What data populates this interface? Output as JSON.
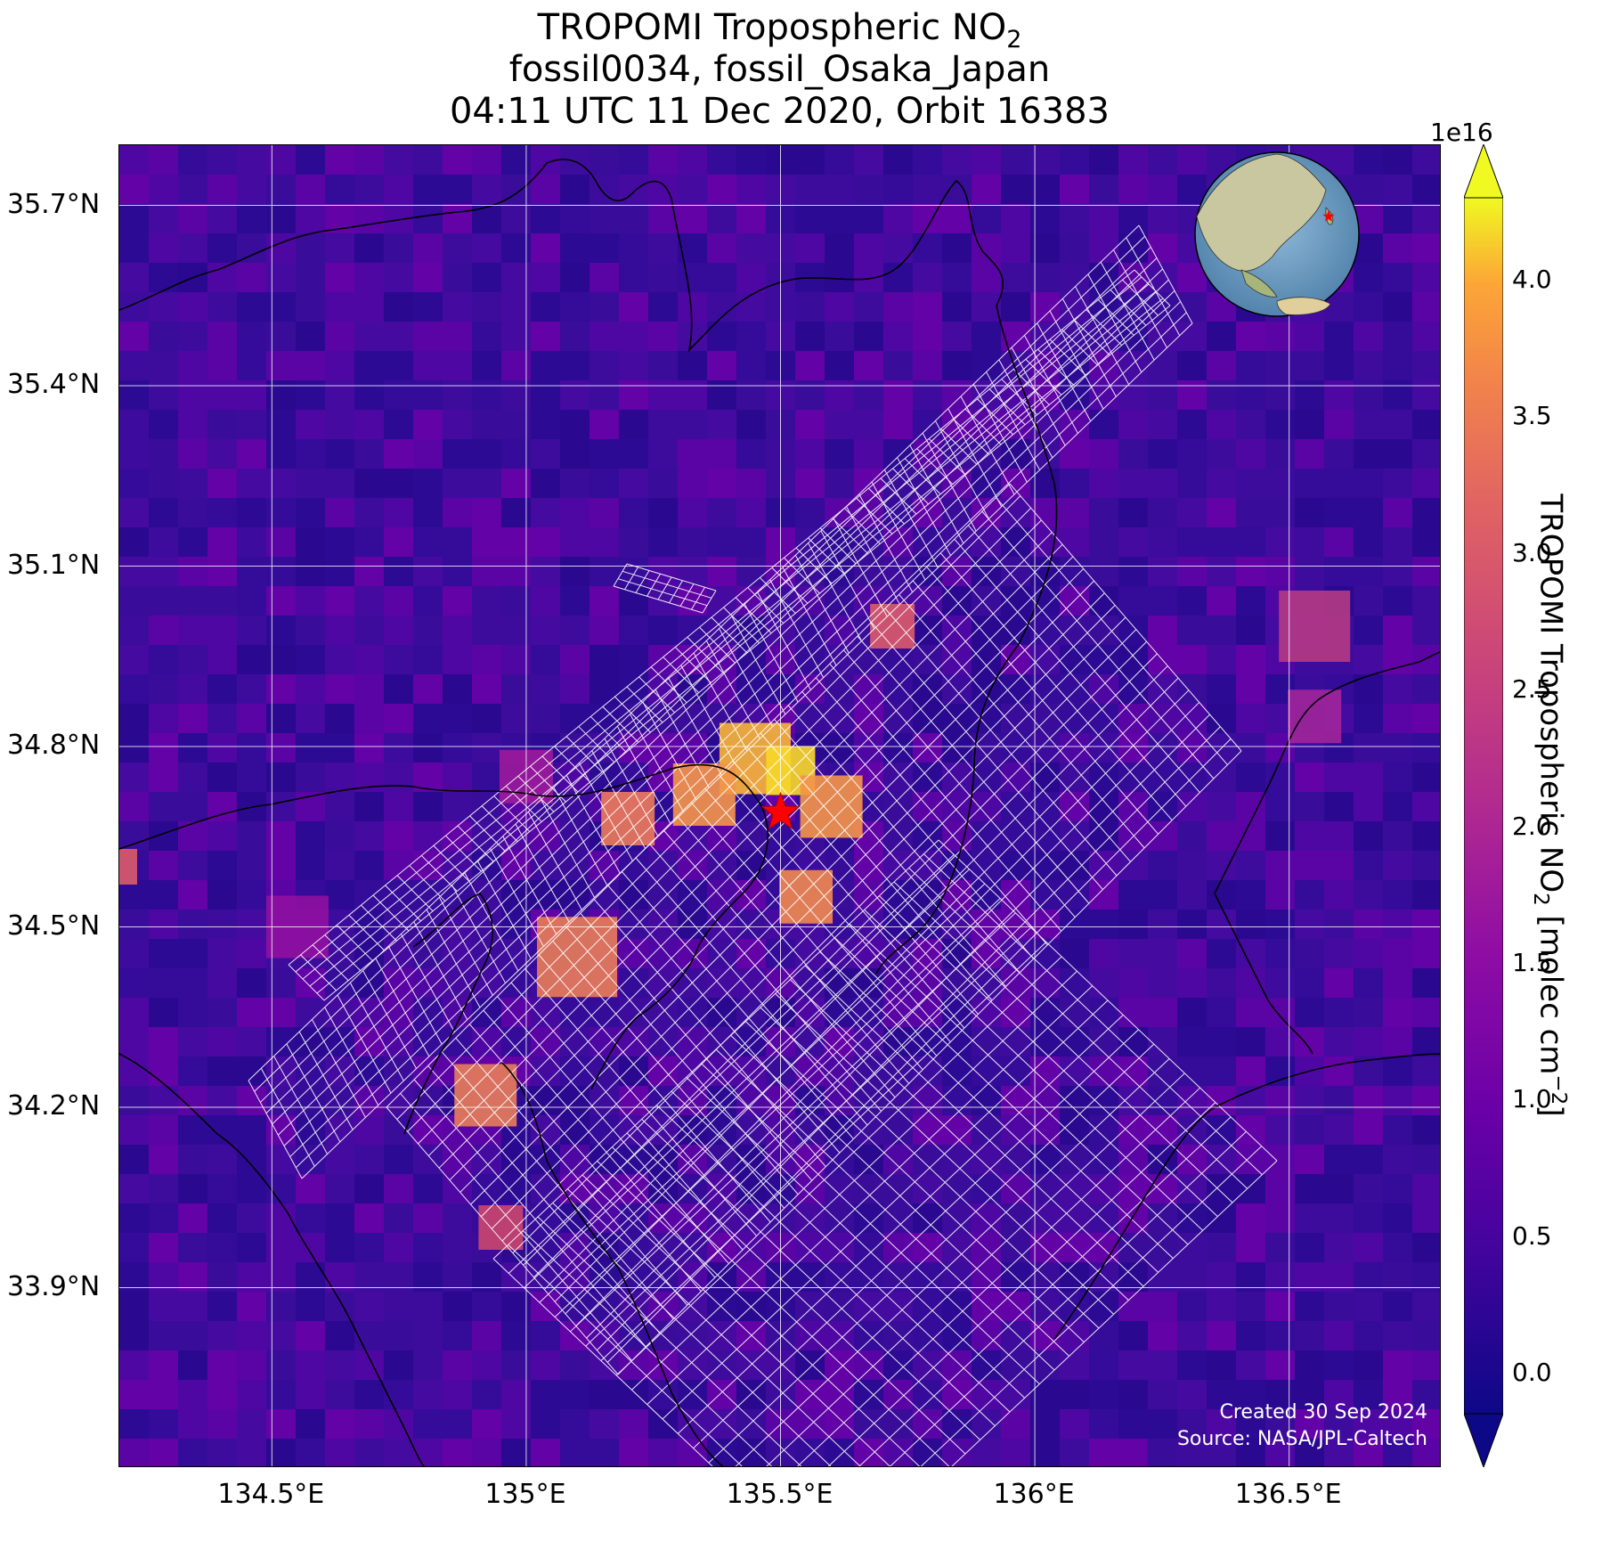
{
  "title": {
    "line1_prefix": "TROPOMI Tropospheric NO",
    "line1_sub": "2",
    "line2": "fossil0034, fossil_Osaka_Japan",
    "line3": "04:11 UTC 11 Dec 2020, Orbit 16383"
  },
  "axes": {
    "lat_labels": [
      "35.7°N",
      "35.4°N",
      "35.1°N",
      "34.8°N",
      "34.5°N",
      "34.2°N",
      "33.9°N"
    ],
    "lat_values": [
      35.7,
      35.4,
      35.1,
      34.8,
      34.5,
      34.2,
      33.9
    ],
    "lon_labels": [
      "134.5°E",
      "135°E",
      "135.5°E",
      "136°E",
      "136.5°E"
    ],
    "lon_values": [
      134.5,
      135.0,
      135.5,
      136.0,
      136.5
    ],
    "lat_range": [
      33.6,
      35.8
    ],
    "lon_range": [
      134.2,
      136.8
    ],
    "grid": true
  },
  "target": {
    "marker": "red-star",
    "lat": 34.69,
    "lon": 135.5,
    "color": "#ff0000"
  },
  "colorbar": {
    "exponent": "1e16",
    "ticks": [
      "0.0",
      "0.5",
      "1.0",
      "1.5",
      "2.0",
      "2.5",
      "3.0",
      "3.5",
      "4.0"
    ],
    "tick_values": [
      0.0,
      0.5,
      1.0,
      1.5,
      2.0,
      2.5,
      3.0,
      3.5,
      4.0
    ],
    "range": [
      -0.15,
      4.3
    ],
    "colormap": "plasma",
    "extend": "both",
    "label_prefix": "TROPOMI Tropospheric NO",
    "label_sub": "2",
    "label_units": " [molec cm",
    "label_sup": "−2",
    "label_close": "]"
  },
  "credit": {
    "line1": "Created 30 Sep 2024",
    "line2": "Source: NASA/JPL-Caltech"
  },
  "inset": {
    "type": "globe",
    "marker": "red-star"
  },
  "colors": {
    "background_plasma_low": "#3a0c9a",
    "grid": "#ffffff",
    "coast": "#000000",
    "footprint": "#ffffff",
    "star": "#ff0000"
  }
}
